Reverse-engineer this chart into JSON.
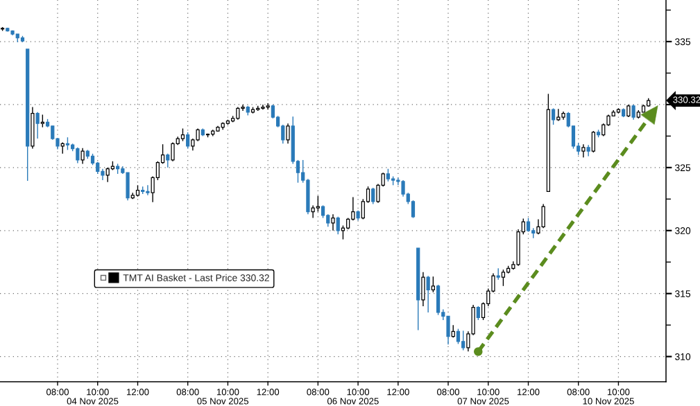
{
  "chart_data": {
    "type": "candlestick",
    "categories": [
      null,
      null,
      null,
      null,
      null,
      null,
      null,
      null,
      null,
      null,
      null,
      "08:00",
      null,
      null,
      null,
      null,
      null,
      null,
      "04 Nov 2025",
      "10:00",
      null,
      null,
      null,
      null,
      null,
      null,
      null,
      "12:00",
      null,
      null,
      null,
      null,
      null,
      null,
      null,
      null,
      null,
      "08:00",
      null,
      null,
      null,
      null,
      null,
      null,
      "05 Nov 2025",
      "10:00",
      null,
      null,
      null,
      null,
      null,
      null,
      null,
      "12:00",
      null,
      null,
      null,
      null,
      null,
      null,
      null,
      null,
      null,
      "08:00",
      null,
      null,
      null,
      null,
      null,
      null,
      "06 Nov 2025",
      "10:00",
      null,
      null,
      null,
      null,
      null,
      null,
      null,
      "12:00",
      null,
      null,
      null,
      null,
      null,
      null,
      null,
      null,
      null,
      "08:00",
      null,
      null,
      null,
      null,
      null,
      null,
      "07 Nov 2025",
      "10:00",
      null,
      null,
      null,
      null,
      null,
      null,
      null,
      "12:00",
      null,
      null,
      null,
      null,
      null,
      null,
      null,
      null,
      null,
      "08:00",
      null,
      null,
      null,
      null,
      null,
      "10 Nov 2025",
      null,
      "10:00",
      null,
      null,
      null,
      null,
      null,
      null,
      null,
      null,
      null
    ],
    "ylim": [
      308.0,
      338.3
    ],
    "yticks": [
      310,
      315,
      320,
      325,
      {
        "value": 330,
        "label": null
      },
      335
    ],
    "grid": true,
    "legend": "bottom left",
    "annotations": [
      "330.32"
    ],
    "series": [
      {
        "name": "TMT AI Basket - Last Price 330.32",
        "color": "#000000",
        "ohlc": [
          [
            336.0,
            336.15,
            335.85,
            336.05
          ],
          [
            336.05,
            336.1,
            335.8,
            335.85
          ],
          [
            335.85,
            335.9,
            335.5,
            335.6
          ],
          [
            335.6,
            335.6,
            334.95,
            335.3
          ],
          [
            335.3,
            335.45,
            334.95,
            335.05
          ],
          [
            334.4,
            334.4,
            323.95,
            326.7
          ],
          [
            326.7,
            329.8,
            326.5,
            329.3
          ],
          [
            329.3,
            329.4,
            327.3,
            328.5
          ],
          [
            328.5,
            329.2,
            328.2,
            328.6
          ],
          [
            328.6,
            328.85,
            328.2,
            328.3
          ],
          [
            328.3,
            328.3,
            327.2,
            327.3
          ],
          [
            327.3,
            327.35,
            326.45,
            326.7
          ],
          [
            326.7,
            327.0,
            326.1,
            326.9
          ],
          [
            326.9,
            327.4,
            326.4,
            326.8
          ],
          [
            326.8,
            326.9,
            326.3,
            326.5
          ],
          [
            326.5,
            326.6,
            325.35,
            325.6
          ],
          [
            325.6,
            326.55,
            325.3,
            326.3
          ],
          [
            326.3,
            326.4,
            325.7,
            325.9
          ],
          [
            325.9,
            326.1,
            325.2,
            325.35
          ],
          [
            325.35,
            325.45,
            324.5,
            324.7
          ],
          [
            324.7,
            324.9,
            324.0,
            324.4
          ],
          [
            324.4,
            325.0,
            323.85,
            324.9
          ],
          [
            324.9,
            325.5,
            324.8,
            325.1
          ],
          [
            325.1,
            325.3,
            324.5,
            324.9
          ],
          [
            324.9,
            325.1,
            324.5,
            324.6
          ],
          [
            324.6,
            324.6,
            322.4,
            322.6
          ],
          [
            322.6,
            323.0,
            322.5,
            322.8
          ],
          [
            322.8,
            323.6,
            322.7,
            323.2
          ],
          [
            323.2,
            323.5,
            322.9,
            323.1
          ],
          [
            323.1,
            323.6,
            322.8,
            323.0
          ],
          [
            323.0,
            324.3,
            322.25,
            324.2
          ],
          [
            324.2,
            325.5,
            324.0,
            325.4
          ],
          [
            325.4,
            326.85,
            325.3,
            326.0
          ],
          [
            326.0,
            326.1,
            325.0,
            325.6
          ],
          [
            325.6,
            327.0,
            325.5,
            326.9
          ],
          [
            326.9,
            327.45,
            326.8,
            327.3
          ],
          [
            327.3,
            328.1,
            327.1,
            327.6
          ],
          [
            327.6,
            327.8,
            326.5,
            326.7
          ],
          [
            326.7,
            327.3,
            326.35,
            327.2
          ],
          [
            327.2,
            328.1,
            327.1,
            328.0
          ],
          [
            328.0,
            328.1,
            327.5,
            327.6
          ],
          [
            327.6,
            327.7,
            327.4,
            327.65
          ],
          [
            327.65,
            328.0,
            327.5,
            327.9
          ],
          [
            327.9,
            328.3,
            327.85,
            328.2
          ],
          [
            328.2,
            328.6,
            328.0,
            328.5
          ],
          [
            328.5,
            328.8,
            328.4,
            328.7
          ],
          [
            328.7,
            329.1,
            328.6,
            328.9
          ],
          [
            328.9,
            329.8,
            328.8,
            329.7
          ],
          [
            329.7,
            330.0,
            329.5,
            329.8
          ],
          [
            329.8,
            329.9,
            329.15,
            329.4
          ],
          [
            329.4,
            329.8,
            329.3,
            329.6
          ],
          [
            329.6,
            329.9,
            329.5,
            329.7
          ],
          [
            329.7,
            330.0,
            329.6,
            329.8
          ],
          [
            329.8,
            330.1,
            329.6,
            329.9
          ],
          [
            329.9,
            330.0,
            328.9,
            329.0
          ],
          [
            329.0,
            329.1,
            328.2,
            328.3
          ],
          [
            328.3,
            328.4,
            326.9,
            327.2
          ],
          [
            327.2,
            328.5,
            326.9,
            328.3
          ],
          [
            328.3,
            329.05,
            325.3,
            325.5
          ],
          [
            325.5,
            325.6,
            323.8,
            324.6
          ],
          [
            324.6,
            325.6,
            323.8,
            324.0
          ],
          [
            324.0,
            324.1,
            321.3,
            321.5
          ],
          [
            321.5,
            322.0,
            321.0,
            321.8
          ],
          [
            321.8,
            322.75,
            321.5,
            321.9
          ],
          [
            321.9,
            322.0,
            321.0,
            321.2
          ],
          [
            321.2,
            321.3,
            320.3,
            320.6
          ],
          [
            320.6,
            321.3,
            320.0,
            321.0
          ],
          [
            321.0,
            321.1,
            319.7,
            320.0
          ],
          [
            320.0,
            320.4,
            319.3,
            320.2
          ],
          [
            320.2,
            321.0,
            320.1,
            320.9
          ],
          [
            320.9,
            322.65,
            320.8,
            321.5
          ],
          [
            321.5,
            321.6,
            320.8,
            321.0
          ],
          [
            321.0,
            322.5,
            320.9,
            322.3
          ],
          [
            322.3,
            323.5,
            322.2,
            323.3
          ],
          [
            323.3,
            323.4,
            322.1,
            322.3
          ],
          [
            322.3,
            323.7,
            322.2,
            323.6
          ],
          [
            323.6,
            324.6,
            323.5,
            324.5
          ],
          [
            324.5,
            324.9,
            323.9,
            324.1
          ],
          [
            324.1,
            324.3,
            323.6,
            324.0
          ],
          [
            324.0,
            324.2,
            323.6,
            323.9
          ],
          [
            323.9,
            324.0,
            322.7,
            322.9
          ],
          [
            322.9,
            323.0,
            322.1,
            322.3
          ],
          [
            322.3,
            322.4,
            321.0,
            321.1
          ],
          [
            318.6,
            318.6,
            312.1,
            314.5
          ],
          [
            314.5,
            316.7,
            314.0,
            316.3
          ],
          [
            316.3,
            316.4,
            313.5,
            315.3
          ],
          [
            315.3,
            316.35,
            315.1,
            315.6
          ],
          [
            315.6,
            315.7,
            313.3,
            313.5
          ],
          [
            313.5,
            313.75,
            312.9,
            313.2
          ],
          [
            313.2,
            313.2,
            310.95,
            311.6
          ],
          [
            311.6,
            312.5,
            311.5,
            312.0
          ],
          [
            312.0,
            312.2,
            311.0,
            311.2
          ],
          [
            311.2,
            312.05,
            310.5,
            310.7
          ],
          [
            310.7,
            312.0,
            310.4,
            311.8
          ],
          [
            311.8,
            314.1,
            311.7,
            313.9
          ],
          [
            313.9,
            314.0,
            312.9,
            313.1
          ],
          [
            313.1,
            314.3,
            312.9,
            314.2
          ],
          [
            314.2,
            315.4,
            314.0,
            315.2
          ],
          [
            315.2,
            316.6,
            315.1,
            316.4
          ],
          [
            316.4,
            317.0,
            316.1,
            316.3
          ],
          [
            316.3,
            316.9,
            315.6,
            316.7
          ],
          [
            316.7,
            317.2,
            316.6,
            317.0
          ],
          [
            317.0,
            317.55,
            316.9,
            317.3
          ],
          [
            317.3,
            320.1,
            317.2,
            319.9
          ],
          [
            319.9,
            320.95,
            319.7,
            320.7
          ],
          [
            320.7,
            321.0,
            319.9,
            320.0
          ],
          [
            320.0,
            320.2,
            319.4,
            319.8
          ],
          [
            319.8,
            320.9,
            319.7,
            320.3
          ],
          [
            320.3,
            322.1,
            320.2,
            321.9
          ],
          [
            323.1,
            330.85,
            323.1,
            329.6
          ],
          [
            329.6,
            329.7,
            328.4,
            328.8
          ],
          [
            328.8,
            329.65,
            328.7,
            329.0
          ],
          [
            329.0,
            329.45,
            328.8,
            329.3
          ],
          [
            329.3,
            329.4,
            328.2,
            328.3
          ],
          [
            328.3,
            328.3,
            326.5,
            326.7
          ],
          [
            326.7,
            326.95,
            326.0,
            326.3
          ],
          [
            326.3,
            326.85,
            325.8,
            326.6
          ],
          [
            326.6,
            326.8,
            325.9,
            326.3
          ],
          [
            326.3,
            327.9,
            326.2,
            327.8
          ],
          [
            327.8,
            328.0,
            327.4,
            327.6
          ],
          [
            327.6,
            328.5,
            327.5,
            328.4
          ],
          [
            328.4,
            329.2,
            328.3,
            329.1
          ],
          [
            329.1,
            329.55,
            329.1,
            329.4
          ],
          [
            329.4,
            329.7,
            329.3,
            329.6
          ],
          [
            329.6,
            329.7,
            329.0,
            329.1
          ],
          [
            329.1,
            330.0,
            329.0,
            329.9
          ],
          [
            329.9,
            330.0,
            328.8,
            329.0
          ],
          [
            329.0,
            329.55,
            328.9,
            329.4
          ],
          [
            329.4,
            330.0,
            329.4,
            329.9
          ],
          [
            329.9,
            330.5,
            329.85,
            330.32
          ],
          null,
          null,
          null
        ],
        "colors": [
          "#000000",
          "#2a7ab9",
          "#2a7ab9",
          "#2a7ab9",
          "#2a7ab9",
          "#2a7ab9",
          "#000000",
          "#2a7ab9",
          "#000000",
          "#2a7ab9",
          "#2a7ab9",
          "#2a7ab9",
          "#000000",
          "#2a7ab9",
          "#2a7ab9",
          "#2a7ab9",
          "#000000",
          "#2a7ab9",
          "#2a7ab9",
          "#2a7ab9",
          "#2a7ab9",
          "#000000",
          "#000000",
          "#2a7ab9",
          "#2a7ab9",
          "#2a7ab9",
          "#000000",
          "#000000",
          "#2a7ab9",
          "#2a7ab9",
          "#000000",
          "#000000",
          "#000000",
          "#2a7ab9",
          "#000000",
          "#000000",
          "#000000",
          "#2a7ab9",
          "#000000",
          "#000000",
          "#2a7ab9",
          "#000000",
          "#000000",
          "#000000",
          "#000000",
          "#000000",
          "#000000",
          "#000000",
          "#000000",
          "#2a7ab9",
          "#000000",
          "#000000",
          "#000000",
          "#000000",
          "#2a7ab9",
          "#2a7ab9",
          "#2a7ab9",
          "#000000",
          "#2a7ab9",
          "#2a7ab9",
          "#2a7ab9",
          "#2a7ab9",
          "#000000",
          "#000000",
          "#2a7ab9",
          "#2a7ab9",
          "#000000",
          "#2a7ab9",
          "#000000",
          "#000000",
          "#000000",
          "#2a7ab9",
          "#000000",
          "#000000",
          "#2a7ab9",
          "#000000",
          "#000000",
          "#2a7ab9",
          "#2a7ab9",
          "#2a7ab9",
          "#2a7ab9",
          "#2a7ab9",
          "#2a7ab9",
          "#2a7ab9",
          "#000000",
          "#2a7ab9",
          "#000000",
          "#2a7ab9",
          "#2a7ab9",
          "#2a7ab9",
          "#000000",
          "#2a7ab9",
          "#2a7ab9",
          "#000000",
          "#000000",
          "#2a7ab9",
          "#000000",
          "#000000",
          "#000000",
          "#2a7ab9",
          "#000000",
          "#000000",
          "#000000",
          "#000000",
          "#000000",
          "#2a7ab9",
          "#2a7ab9",
          "#000000",
          "#000000",
          "#000000",
          "#2a7ab9",
          "#000000",
          "#000000",
          "#2a7ab9",
          "#2a7ab9",
          "#2a7ab9",
          "#000000",
          "#2a7ab9",
          "#000000",
          "#2a7ab9",
          "#000000",
          "#000000",
          "#000000",
          "#000000",
          "#2a7ab9",
          "#000000",
          "#2a7ab9",
          "#000000",
          "#000000",
          "#000000",
          null,
          null,
          null
        ]
      }
    ]
  }
}
